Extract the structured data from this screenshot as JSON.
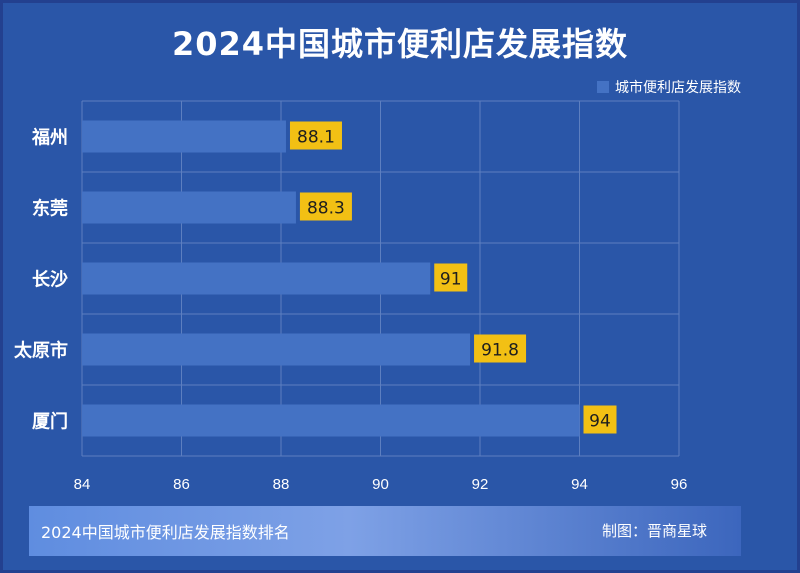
{
  "chart_data": {
    "type": "bar",
    "orientation": "horizontal",
    "title": "2024中国城市便利店发展指数",
    "categories": [
      "福州",
      "东莞",
      "长沙",
      "太原市",
      "厦门"
    ],
    "series": [
      {
        "name": "城市便利店发展指数",
        "values": [
          88.1,
          88.3,
          91,
          91.8,
          94
        ],
        "labels": [
          "88.1",
          "88.3",
          "91",
          "91.8",
          "94"
        ]
      }
    ],
    "xlim": [
      84,
      96
    ],
    "xticks": [
      "84",
      "86",
      "88",
      "90",
      "92",
      "94",
      "96"
    ],
    "grid": true,
    "legend": "top-right",
    "colors": {
      "background": "#2a56a8",
      "bar": "#4472c4",
      "label_box": "#f2c014",
      "grid": "#5d7fc0"
    }
  },
  "footer": {
    "left_text": "2024中国城市便利店发展指数排名",
    "right_text": "制图：晋商星球"
  }
}
